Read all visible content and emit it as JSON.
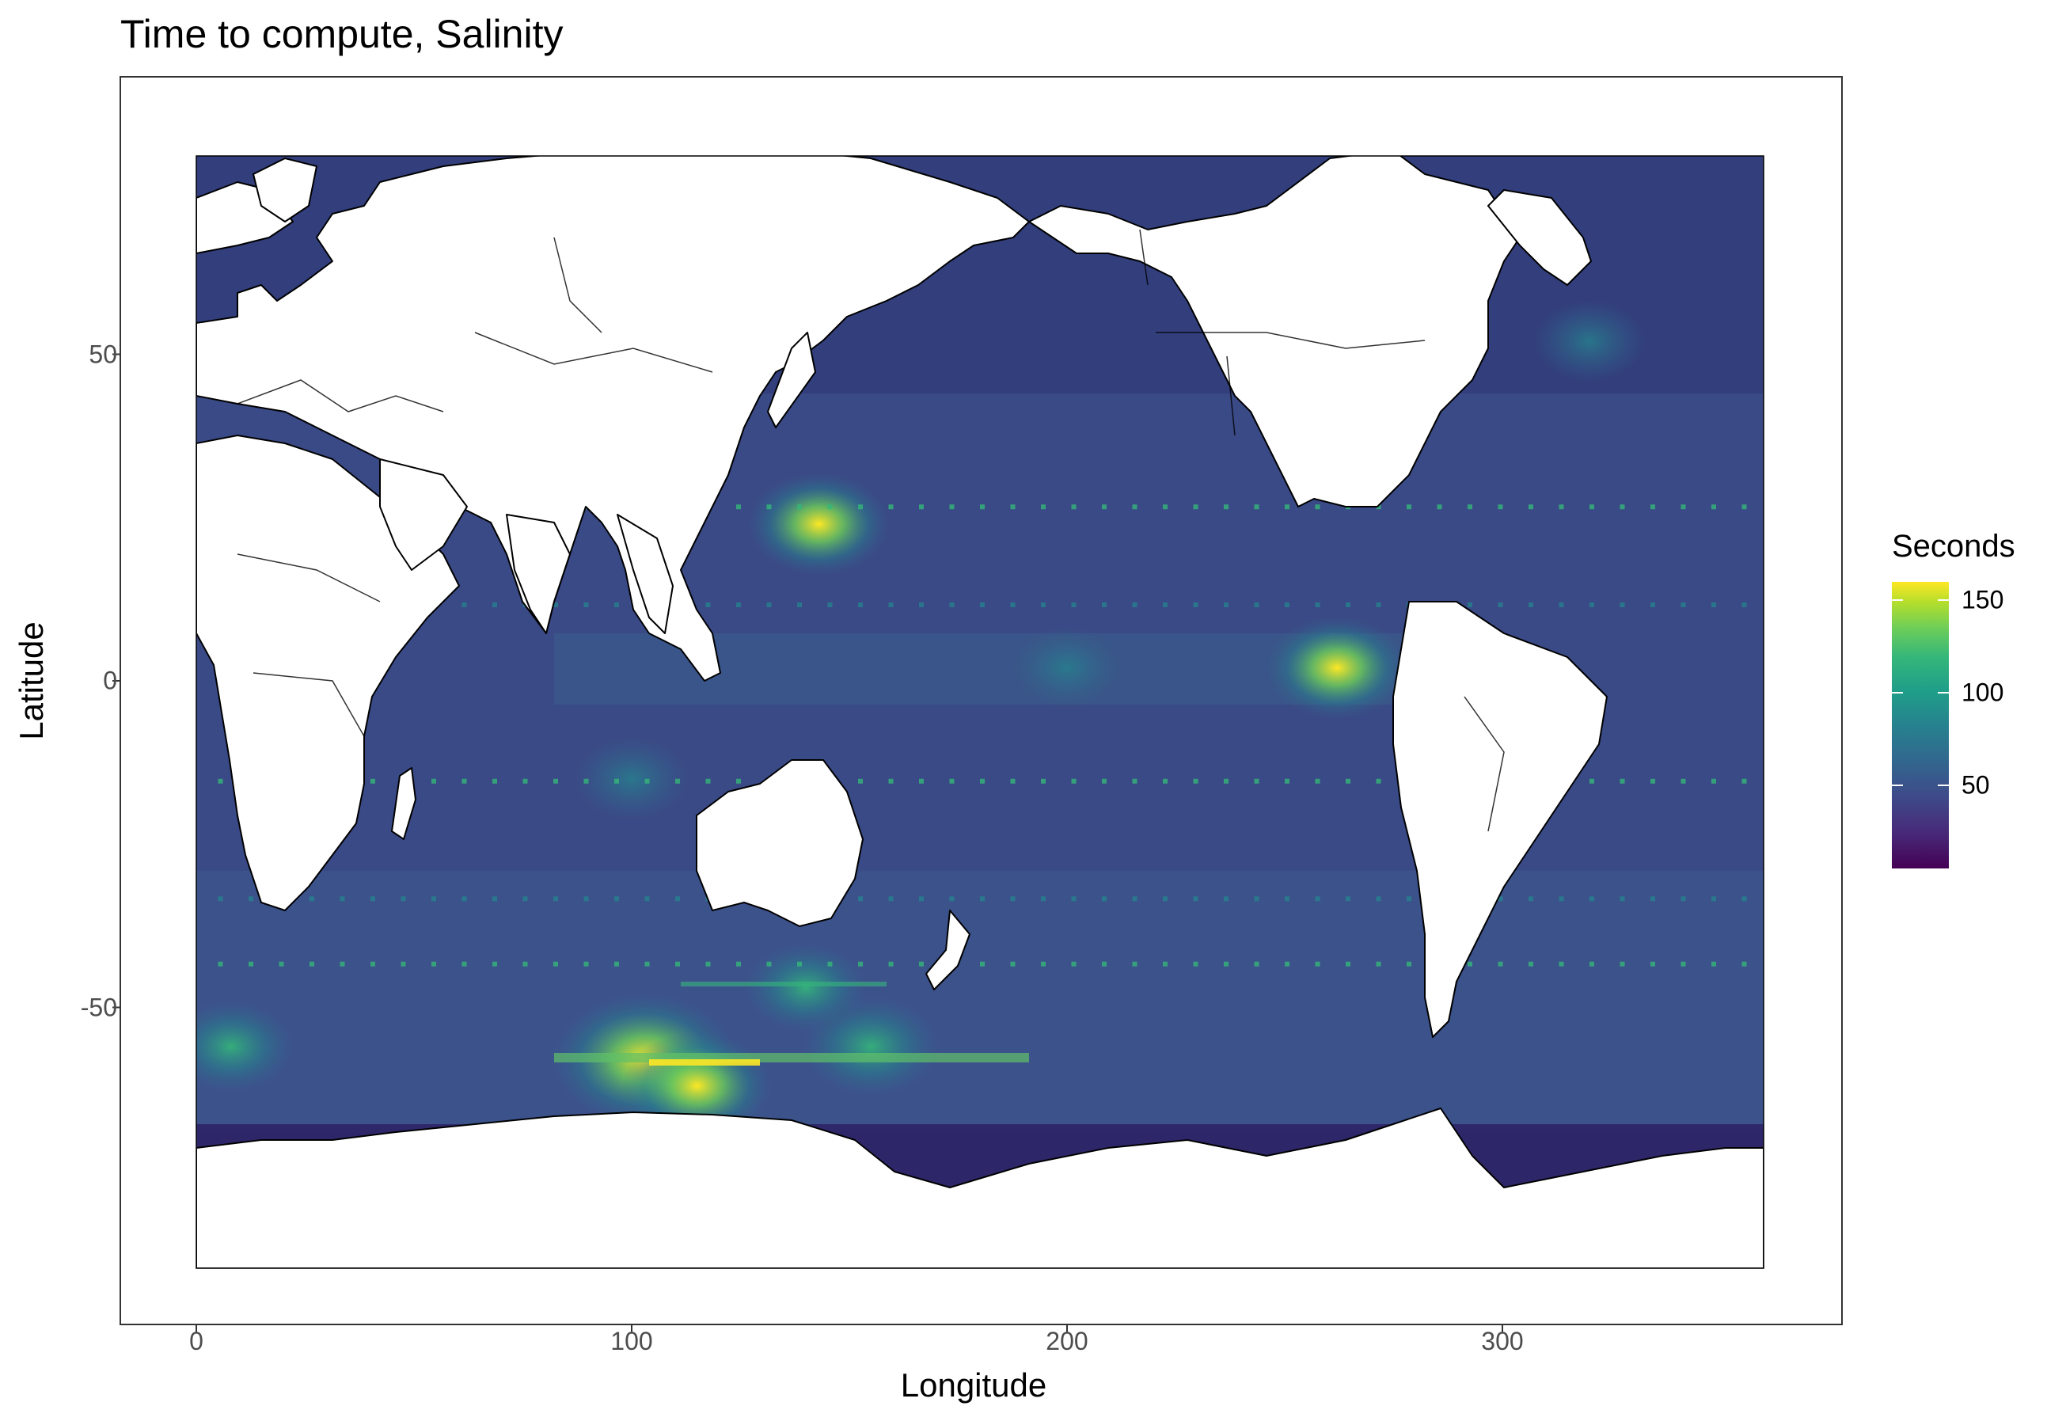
{
  "chart_data": {
    "type": "heatmap",
    "title": "Time to compute, Salinity",
    "xlabel": "Longitude",
    "ylabel": "Latitude",
    "xlim": [
      0,
      360
    ],
    "ylim": [
      -90,
      80
    ],
    "x_ticks": [
      "0",
      "100",
      "200",
      "300"
    ],
    "x_tick_values": [
      0,
      100,
      200,
      300
    ],
    "y_ticks": [
      "50",
      "0",
      "-50"
    ],
    "y_tick_values": [
      50,
      0,
      -50
    ],
    "legend": {
      "title": "Seconds",
      "labels": [
        "150",
        "100",
        "50"
      ],
      "values": [
        150,
        100,
        50
      ],
      "range": [
        5,
        160
      ],
      "colormap": "viridis",
      "placement": "right"
    },
    "grid": false,
    "hotspots": [
      {
        "lon": 103,
        "lat": -58,
        "seconds": 155
      },
      {
        "lon": 115,
        "lat": -62,
        "seconds": 110
      },
      {
        "lon": 143,
        "lat": 24,
        "seconds": 100
      },
      {
        "lon": 262,
        "lat": 2,
        "seconds": 100
      },
      {
        "lon": 155,
        "lat": -56,
        "seconds": 95
      },
      {
        "lon": 8,
        "lat": -56,
        "seconds": 80
      },
      {
        "lon": 140,
        "lat": -47,
        "seconds": 75
      },
      {
        "lon": 320,
        "lat": 52,
        "seconds": 60
      },
      {
        "lon": 100,
        "lat": -15,
        "seconds": 65
      },
      {
        "lon": 200,
        "lat": 2,
        "seconds": 60
      }
    ],
    "background_seconds": 30
  },
  "colors": {
    "ocean_low": "#2a1a5e",
    "ocean_mid": "#3b4f8b",
    "land": "#ffffff",
    "coastline": "#000000"
  }
}
